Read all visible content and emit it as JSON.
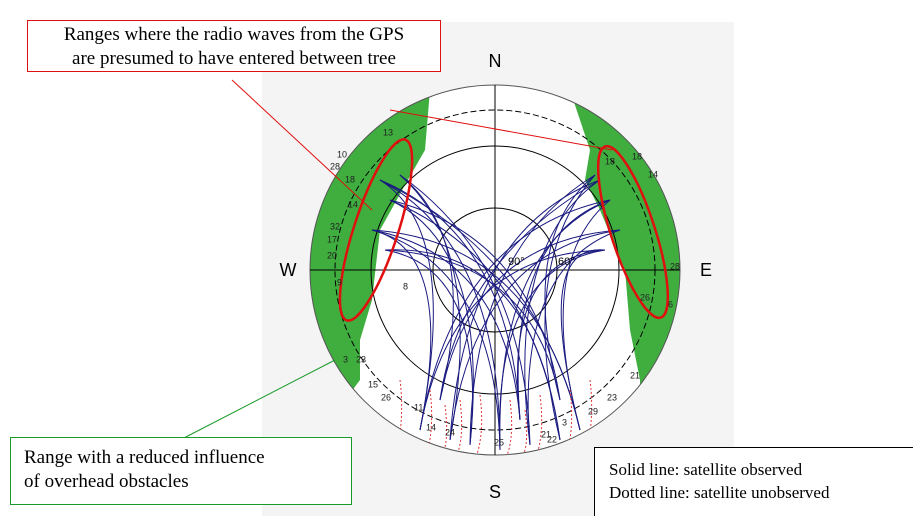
{
  "callouts": {
    "trees": {
      "line1": "Ranges where the radio waves from the GPS",
      "line2": "are presumed to have entered between tree"
    },
    "open": {
      "line1": "Range with a reduced influence",
      "line2": "of overhead obstacles"
    }
  },
  "compass": {
    "north": "N",
    "south": "S",
    "west": "W",
    "east": "E"
  },
  "elevations": {
    "zenith": "90°",
    "sixty": "60°"
  },
  "legend": {
    "solid": "Solid line: satellite observed",
    "dotted": "Dotted line: satellite unobserved"
  },
  "satellites": [
    "18",
    "14",
    "18",
    "28",
    "6",
    "26",
    "10",
    "28",
    "18",
    "14",
    "32",
    "17",
    "20",
    "9",
    "8",
    "3",
    "23",
    "15",
    "26",
    "11",
    "14",
    "24",
    "25",
    "21",
    "3",
    "22",
    "29",
    "23",
    "21",
    "13"
  ]
}
